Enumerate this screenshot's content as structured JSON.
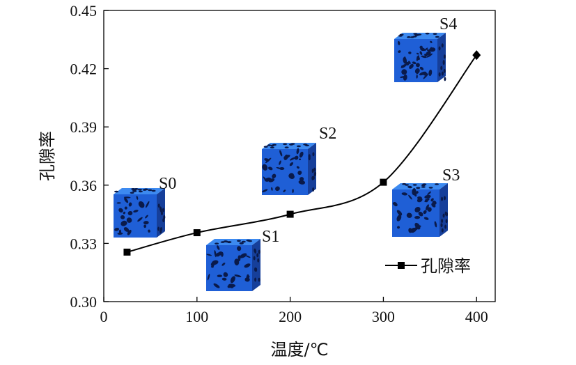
{
  "chart_data": {
    "type": "line",
    "xlabel": "温度/℃",
    "ylabel": "孔隙率",
    "xlim": [
      0,
      420
    ],
    "ylim": [
      0.3,
      0.45
    ],
    "x_ticks": [
      0,
      100,
      200,
      300,
      400
    ],
    "y_ticks": [
      0.3,
      0.33,
      0.36,
      0.39,
      0.42,
      0.45
    ],
    "x_tick_labels": [
      "0",
      "100",
      "200",
      "300",
      "400"
    ],
    "y_tick_labels": [
      "0.30",
      "0.33",
      "0.36",
      "0.39",
      "0.42",
      "0.45"
    ],
    "grid": false,
    "legend_position": "lower-right",
    "series": [
      {
        "name": "孔隙率",
        "x": [
          25,
          100,
          200,
          300,
          400
        ],
        "y": [
          0.3255,
          0.3355,
          0.345,
          0.3615,
          0.427
        ]
      }
    ],
    "annotations": [
      {
        "label": "S0",
        "x": 25
      },
      {
        "label": "S1",
        "x": 100
      },
      {
        "label": "S2",
        "x": 200
      },
      {
        "label": "S3",
        "x": 300
      },
      {
        "label": "S4",
        "x": 400
      }
    ],
    "colors": {
      "line": "#000000",
      "cube_face_front": "#1f5fd6",
      "cube_face_top": "#3d8af0",
      "cube_face_side": "#163f9a",
      "pores": "#0a1a4a"
    }
  }
}
